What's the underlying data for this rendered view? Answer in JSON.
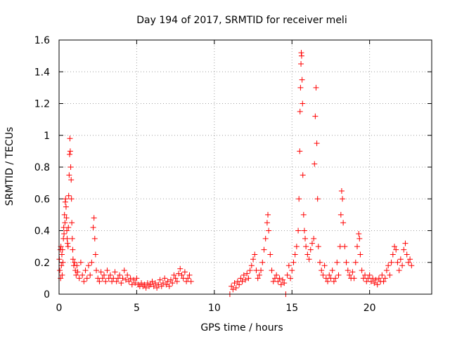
{
  "chart_data": {
    "type": "scatter",
    "title": "Day 194 of 2017, SRMTID for receiver meli",
    "xlabel": "GPS time / hours",
    "ylabel": "SRMTID / TECUs",
    "xlim": [
      0,
      24
    ],
    "ylim": [
      0,
      1.6
    ],
    "xticks": [
      0,
      5,
      10,
      15,
      20
    ],
    "xtick_labels": [
      "0",
      "5",
      "10",
      "15",
      "20"
    ],
    "yticks": [
      0,
      0.2,
      0.4,
      0.6,
      0.8,
      1,
      1.2,
      1.4,
      1.6
    ],
    "ytick_labels": [
      "0",
      "0.2",
      "0.4",
      "0.6",
      "0.8",
      "1",
      "1.2",
      "1.4",
      "1.6"
    ],
    "grid": true,
    "marker": "+",
    "marker_color": "#ff0000",
    "series": [
      {
        "name": "SRMTID",
        "points": [
          [
            0.02,
            0.22
          ],
          [
            0.05,
            0.15
          ],
          [
            0.08,
            0.28
          ],
          [
            0.1,
            0.1
          ],
          [
            0.12,
            0.3
          ],
          [
            0.15,
            0.18
          ],
          [
            0.18,
            0.25
          ],
          [
            0.2,
            0.12
          ],
          [
            0.22,
            0.28
          ],
          [
            0.25,
            0.2
          ],
          [
            0.28,
            0.35
          ],
          [
            0.3,
            0.42
          ],
          [
            0.32,
            0.38
          ],
          [
            0.35,
            0.5
          ],
          [
            0.38,
            0.45
          ],
          [
            0.4,
            0.58
          ],
          [
            0.42,
            0.6
          ],
          [
            0.45,
            0.55
          ],
          [
            0.48,
            0.48
          ],
          [
            0.5,
            0.4
          ],
          [
            0.52,
            0.35
          ],
          [
            0.55,
            0.32
          ],
          [
            0.58,
            0.3
          ],
          [
            0.6,
            0.42
          ],
          [
            0.62,
            0.62
          ],
          [
            0.65,
            0.75
          ],
          [
            0.68,
            0.88
          ],
          [
            0.7,
            0.98
          ],
          [
            0.72,
            0.9
          ],
          [
            0.75,
            0.8
          ],
          [
            0.78,
            0.72
          ],
          [
            0.8,
            0.6
          ],
          [
            0.82,
            0.45
          ],
          [
            0.85,
            0.35
          ],
          [
            0.88,
            0.28
          ],
          [
            0.9,
            0.22
          ],
          [
            0.95,
            0.18
          ],
          [
            1.0,
            0.2
          ],
          [
            1.05,
            0.15
          ],
          [
            1.1,
            0.12
          ],
          [
            1.15,
            0.18
          ],
          [
            1.2,
            0.14
          ],
          [
            1.3,
            0.1
          ],
          [
            1.4,
            0.2
          ],
          [
            1.5,
            0.12
          ],
          [
            1.6,
            0.08
          ],
          [
            1.7,
            0.15
          ],
          [
            1.8,
            0.1
          ],
          [
            1.9,
            0.18
          ],
          [
            2.0,
            0.12
          ],
          [
            2.1,
            0.2
          ],
          [
            2.2,
            0.42
          ],
          [
            2.25,
            0.48
          ],
          [
            2.3,
            0.35
          ],
          [
            2.35,
            0.25
          ],
          [
            2.4,
            0.15
          ],
          [
            2.5,
            0.1
          ],
          [
            2.6,
            0.08
          ],
          [
            2.7,
            0.14
          ],
          [
            2.8,
            0.1
          ],
          [
            2.9,
            0.12
          ],
          [
            3.0,
            0.08
          ],
          [
            3.1,
            0.15
          ],
          [
            3.2,
            0.1
          ],
          [
            3.3,
            0.12
          ],
          [
            3.4,
            0.08
          ],
          [
            3.5,
            0.1
          ],
          [
            3.6,
            0.14
          ],
          [
            3.7,
            0.08
          ],
          [
            3.8,
            0.1
          ],
          [
            3.9,
            0.12
          ],
          [
            4.0,
            0.07
          ],
          [
            4.1,
            0.1
          ],
          [
            4.2,
            0.15
          ],
          [
            4.3,
            0.09
          ],
          [
            4.4,
            0.12
          ],
          [
            4.5,
            0.08
          ],
          [
            4.6,
            0.1
          ],
          [
            4.7,
            0.06
          ],
          [
            4.8,
            0.09
          ],
          [
            4.9,
            0.07
          ],
          [
            5.0,
            0.1
          ],
          [
            5.1,
            0.06
          ],
          [
            5.2,
            0.05
          ],
          [
            5.3,
            0.07
          ],
          [
            5.4,
            0.05
          ],
          [
            5.5,
            0.06
          ],
          [
            5.6,
            0.04
          ],
          [
            5.7,
            0.07
          ],
          [
            5.8,
            0.05
          ],
          [
            5.9,
            0.06
          ],
          [
            6.0,
            0.08
          ],
          [
            6.1,
            0.05
          ],
          [
            6.2,
            0.07
          ],
          [
            6.3,
            0.04
          ],
          [
            6.4,
            0.06
          ],
          [
            6.5,
            0.09
          ],
          [
            6.6,
            0.05
          ],
          [
            6.7,
            0.07
          ],
          [
            6.8,
            0.1
          ],
          [
            6.9,
            0.06
          ],
          [
            7.0,
            0.08
          ],
          [
            7.1,
            0.05
          ],
          [
            7.2,
            0.09
          ],
          [
            7.3,
            0.07
          ],
          [
            7.4,
            0.12
          ],
          [
            7.5,
            0.1
          ],
          [
            7.6,
            0.08
          ],
          [
            7.7,
            0.13
          ],
          [
            7.8,
            0.16
          ],
          [
            7.9,
            0.12
          ],
          [
            8.0,
            0.1
          ],
          [
            8.1,
            0.14
          ],
          [
            8.2,
            0.08
          ],
          [
            8.3,
            0.1
          ],
          [
            8.4,
            0.12
          ],
          [
            8.5,
            0.08
          ],
          [
            11.0,
            0.0
          ],
          [
            11.1,
            0.05
          ],
          [
            11.2,
            0.03
          ],
          [
            11.3,
            0.07
          ],
          [
            11.4,
            0.04
          ],
          [
            11.5,
            0.08
          ],
          [
            11.6,
            0.06
          ],
          [
            11.7,
            0.1
          ],
          [
            11.8,
            0.08
          ],
          [
            11.9,
            0.12
          ],
          [
            12.0,
            0.09
          ],
          [
            12.1,
            0.13
          ],
          [
            12.2,
            0.1
          ],
          [
            12.3,
            0.15
          ],
          [
            12.4,
            0.18
          ],
          [
            12.5,
            0.22
          ],
          [
            12.6,
            0.25
          ],
          [
            12.7,
            0.15
          ],
          [
            12.8,
            0.1
          ],
          [
            12.9,
            0.12
          ],
          [
            13.0,
            0.15
          ],
          [
            13.1,
            0.2
          ],
          [
            13.2,
            0.28
          ],
          [
            13.3,
            0.35
          ],
          [
            13.4,
            0.45
          ],
          [
            13.45,
            0.5
          ],
          [
            13.5,
            0.4
          ],
          [
            13.6,
            0.25
          ],
          [
            13.7,
            0.15
          ],
          [
            13.8,
            0.08
          ],
          [
            13.9,
            0.1
          ],
          [
            14.0,
            0.12
          ],
          [
            14.1,
            0.08
          ],
          [
            14.2,
            0.1
          ],
          [
            14.3,
            0.06
          ],
          [
            14.4,
            0.09
          ],
          [
            14.5,
            0.07
          ],
          [
            14.6,
            0.0
          ],
          [
            14.7,
            0.12
          ],
          [
            14.8,
            0.18
          ],
          [
            14.9,
            0.1
          ],
          [
            15.0,
            0.15
          ],
          [
            15.1,
            0.2
          ],
          [
            15.2,
            0.25
          ],
          [
            15.3,
            0.3
          ],
          [
            15.4,
            0.4
          ],
          [
            15.45,
            0.6
          ],
          [
            15.5,
            0.9
          ],
          [
            15.52,
            1.15
          ],
          [
            15.55,
            1.3
          ],
          [
            15.58,
            1.45
          ],
          [
            15.6,
            1.52
          ],
          [
            15.62,
            1.5
          ],
          [
            15.65,
            1.35
          ],
          [
            15.68,
            1.2
          ],
          [
            15.7,
            0.75
          ],
          [
            15.75,
            0.5
          ],
          [
            15.8,
            0.4
          ],
          [
            15.85,
            0.35
          ],
          [
            15.9,
            0.3
          ],
          [
            16.0,
            0.25
          ],
          [
            16.1,
            0.22
          ],
          [
            16.2,
            0.28
          ],
          [
            16.3,
            0.32
          ],
          [
            16.4,
            0.35
          ],
          [
            16.45,
            0.82
          ],
          [
            16.5,
            1.12
          ],
          [
            16.55,
            1.3
          ],
          [
            16.6,
            0.95
          ],
          [
            16.65,
            0.6
          ],
          [
            16.7,
            0.3
          ],
          [
            16.8,
            0.2
          ],
          [
            16.9,
            0.15
          ],
          [
            17.0,
            0.12
          ],
          [
            17.1,
            0.18
          ],
          [
            17.2,
            0.1
          ],
          [
            17.3,
            0.08
          ],
          [
            17.4,
            0.12
          ],
          [
            17.5,
            0.1
          ],
          [
            17.6,
            0.15
          ],
          [
            17.7,
            0.08
          ],
          [
            17.8,
            0.1
          ],
          [
            17.9,
            0.2
          ],
          [
            18.0,
            0.12
          ],
          [
            18.1,
            0.3
          ],
          [
            18.15,
            0.5
          ],
          [
            18.2,
            0.65
          ],
          [
            18.25,
            0.6
          ],
          [
            18.3,
            0.45
          ],
          [
            18.4,
            0.3
          ],
          [
            18.5,
            0.2
          ],
          [
            18.6,
            0.15
          ],
          [
            18.7,
            0.12
          ],
          [
            18.8,
            0.1
          ],
          [
            18.9,
            0.14
          ],
          [
            19.0,
            0.1
          ],
          [
            19.1,
            0.2
          ],
          [
            19.2,
            0.3
          ],
          [
            19.3,
            0.38
          ],
          [
            19.35,
            0.35
          ],
          [
            19.4,
            0.25
          ],
          [
            19.5,
            0.15
          ],
          [
            19.6,
            0.1
          ],
          [
            19.7,
            0.12
          ],
          [
            19.8,
            0.08
          ],
          [
            19.9,
            0.1
          ],
          [
            20.0,
            0.12
          ],
          [
            20.1,
            0.08
          ],
          [
            20.2,
            0.1
          ],
          [
            20.3,
            0.07
          ],
          [
            20.4,
            0.09
          ],
          [
            20.5,
            0.06
          ],
          [
            20.6,
            0.1
          ],
          [
            20.7,
            0.08
          ],
          [
            20.8,
            0.12
          ],
          [
            20.9,
            0.08
          ],
          [
            21.0,
            0.1
          ],
          [
            21.1,
            0.15
          ],
          [
            21.2,
            0.18
          ],
          [
            21.3,
            0.12
          ],
          [
            21.4,
            0.2
          ],
          [
            21.5,
            0.25
          ],
          [
            21.6,
            0.3
          ],
          [
            21.7,
            0.28
          ],
          [
            21.8,
            0.2
          ],
          [
            21.9,
            0.15
          ],
          [
            22.0,
            0.22
          ],
          [
            22.1,
            0.18
          ],
          [
            22.2,
            0.28
          ],
          [
            22.3,
            0.32
          ],
          [
            22.4,
            0.25
          ],
          [
            22.5,
            0.2
          ],
          [
            22.6,
            0.22
          ],
          [
            22.7,
            0.18
          ]
        ]
      }
    ]
  }
}
